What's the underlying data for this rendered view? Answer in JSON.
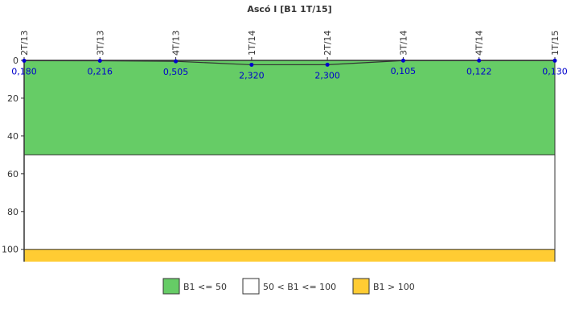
{
  "chart_data": {
    "type": "line",
    "title": "Ascó I [B1 1T/15]",
    "categories": [
      "2T/13",
      "3T/13",
      "4T/13",
      "1T/14",
      "2T/14",
      "3T/14",
      "4T/14",
      "1T/15"
    ],
    "series": [
      {
        "values": [
          0.18,
          0.216,
          0.505,
          2.32,
          2.3,
          0.105,
          0.122,
          0.13
        ],
        "value_labels": [
          "0,180",
          "0,216",
          "0,505",
          "2,320",
          "2,300",
          "0,105",
          "0,122",
          "0,130"
        ],
        "color": "#333333",
        "marker_color": "#0000cc"
      }
    ],
    "y_axis": {
      "range": [
        0,
        106.5
      ],
      "inverted": true,
      "ticks": [
        0,
        20,
        40,
        60,
        80,
        100
      ]
    },
    "x_axis_position": "top",
    "bands": [
      {
        "label": "B1 <= 50",
        "from": 0,
        "to": 50,
        "color": "#66cc66"
      },
      {
        "label": "50 < B1 <= 100",
        "from": 50,
        "to": 100,
        "color": "#ffffff"
      },
      {
        "label": "B1 > 100",
        "from": 100,
        "to": 106.5,
        "color": "#ffcc33"
      }
    ],
    "legend_placement": "bottom",
    "grid": false
  }
}
